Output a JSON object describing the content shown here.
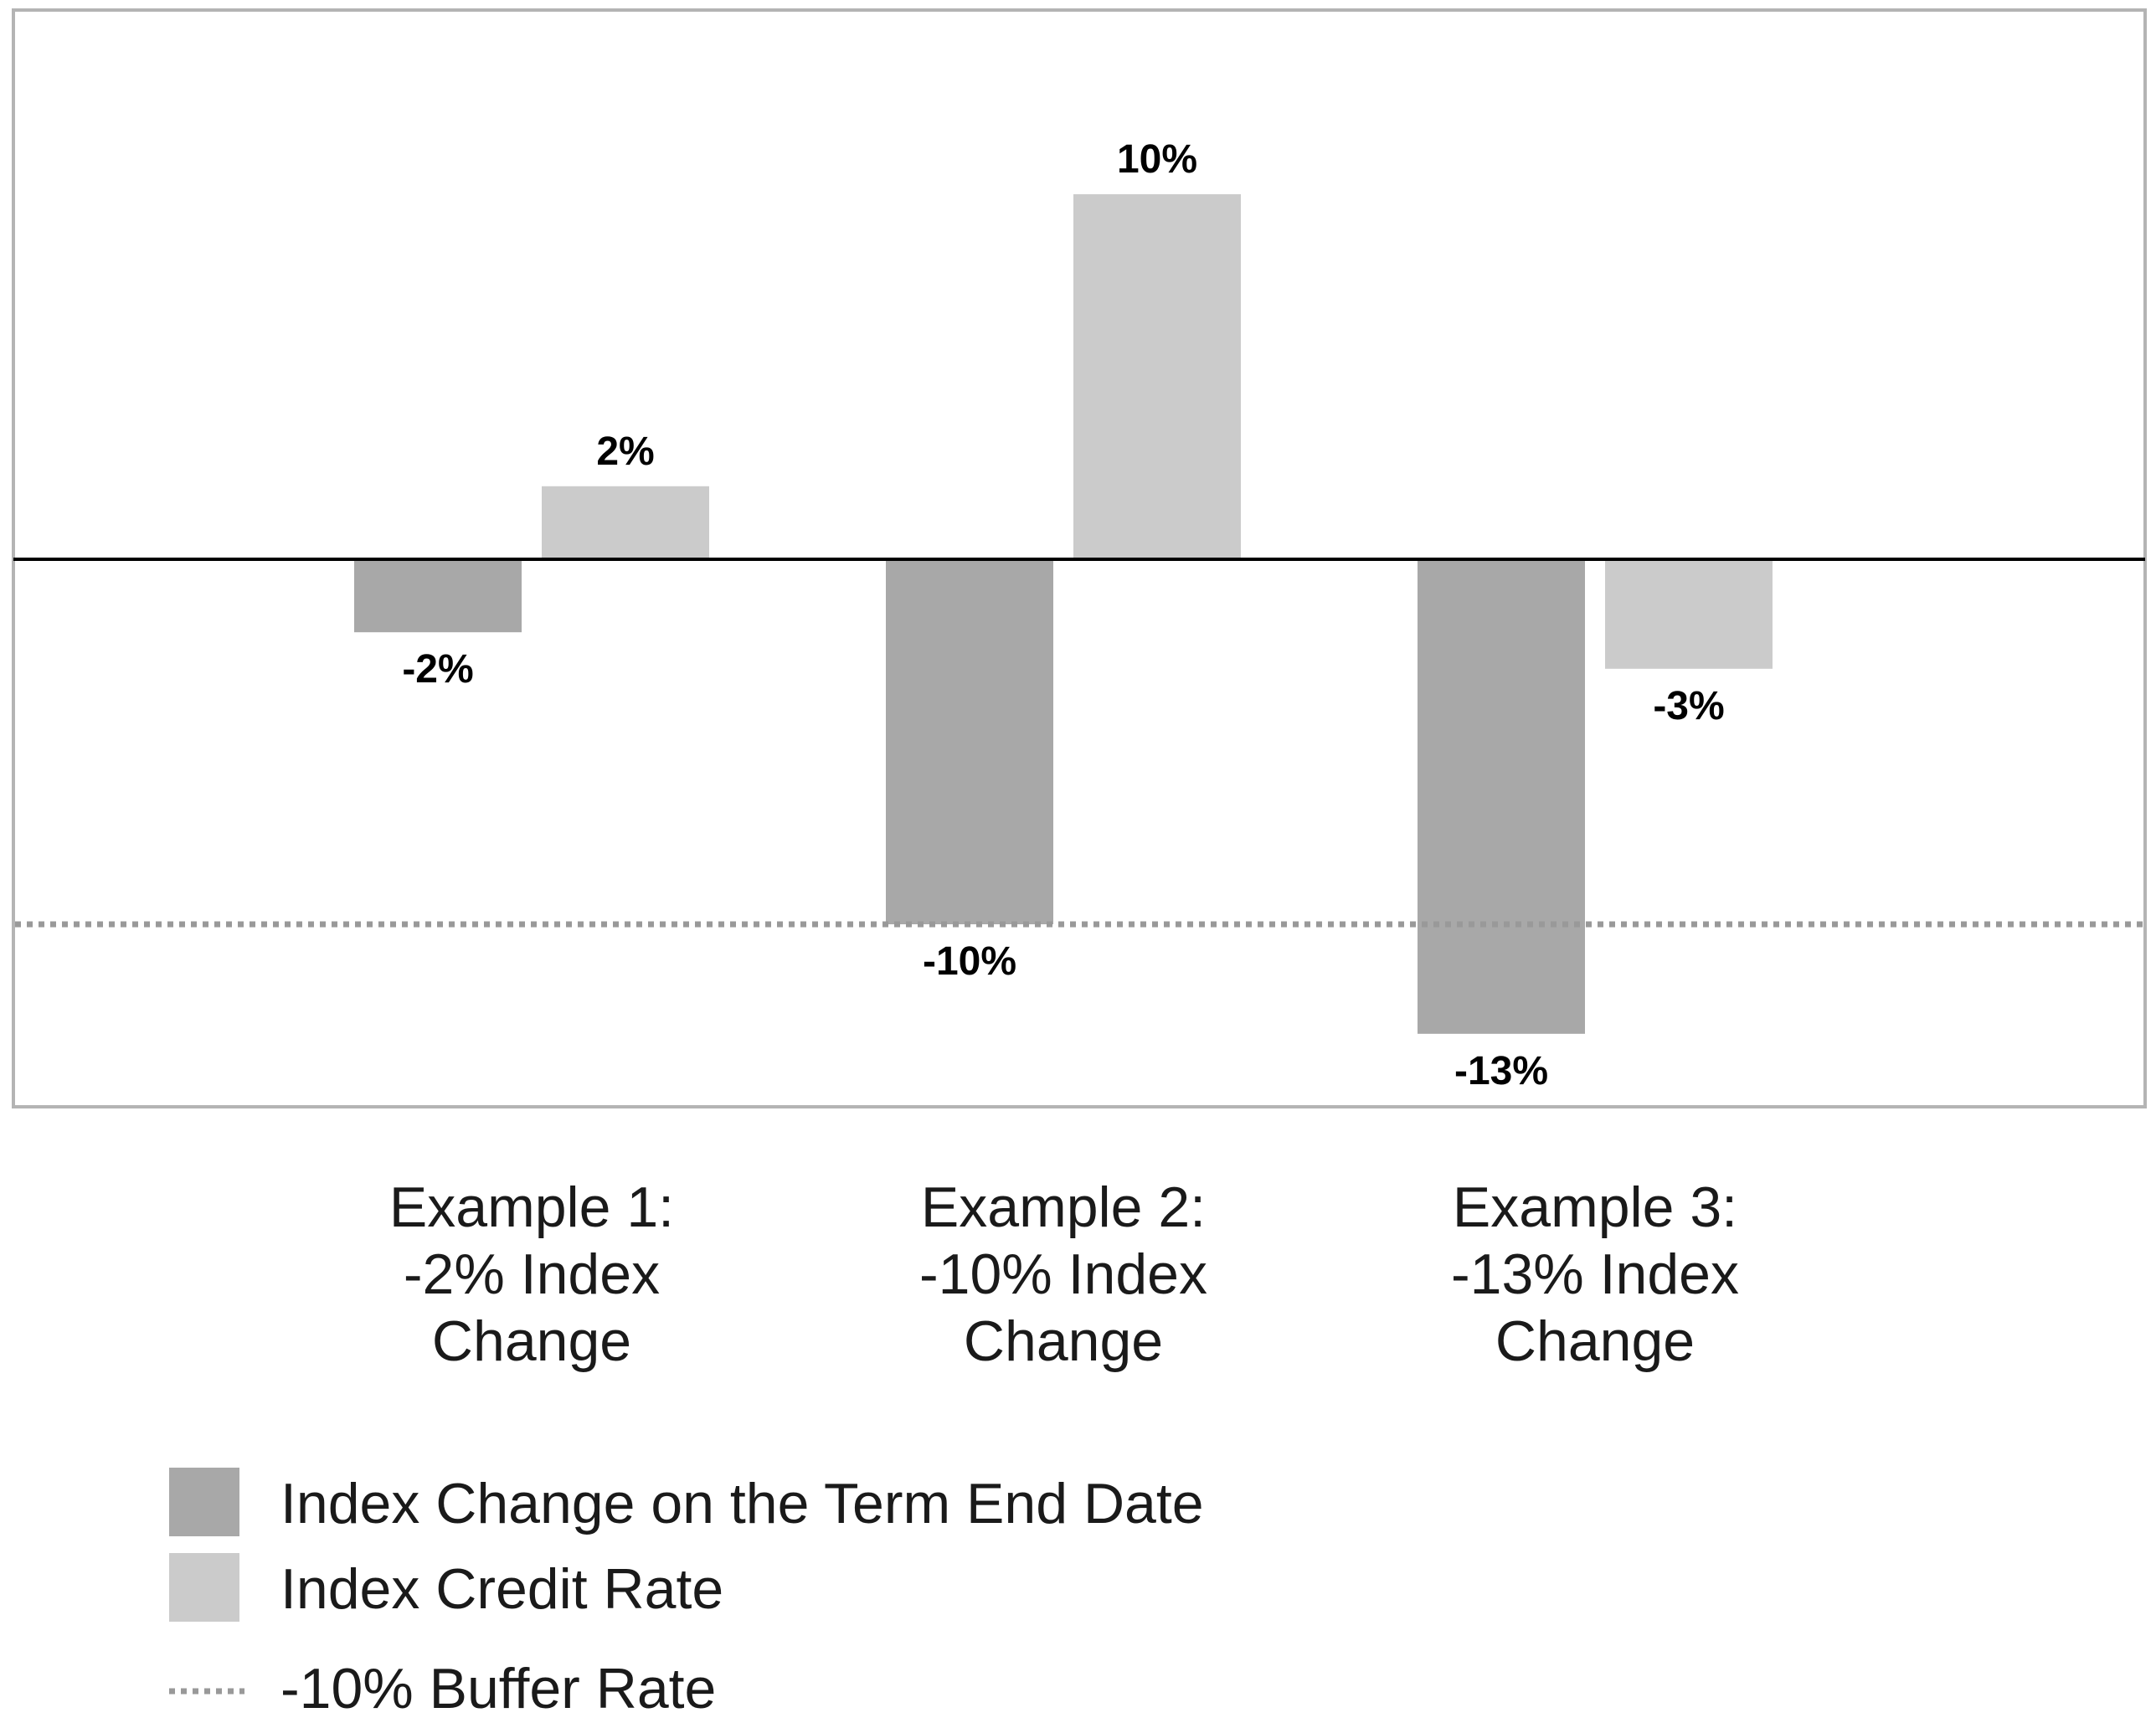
{
  "chart_data": {
    "type": "bar",
    "categories": [
      [
        "Example 1:",
        "-2% Index",
        "Change"
      ],
      [
        "Example 2:",
        "-10% Index",
        "Change"
      ],
      [
        "Example 3:",
        "-13% Index",
        "Change"
      ]
    ],
    "series": [
      {
        "name": "Index Change on the Term End Date",
        "values": [
          -2,
          -10,
          -13
        ],
        "labels": [
          "-2%",
          "-10%",
          "-13%"
        ],
        "color": "#a8a8a8"
      },
      {
        "name": "Index Credit Rate",
        "values": [
          2,
          10,
          -3
        ],
        "labels": [
          "2%",
          "10%",
          "-3%"
        ],
        "color": "#cbcbcb"
      }
    ],
    "reference_line": {
      "name": "-10% Buffer Rate",
      "value": -10,
      "style": "dotted",
      "color": "#999999"
    },
    "ylim": [
      -15,
      15
    ],
    "zero_line": true,
    "grid": false,
    "legend_position": "bottom-left",
    "title": "",
    "xlabel": "",
    "ylabel": ""
  }
}
